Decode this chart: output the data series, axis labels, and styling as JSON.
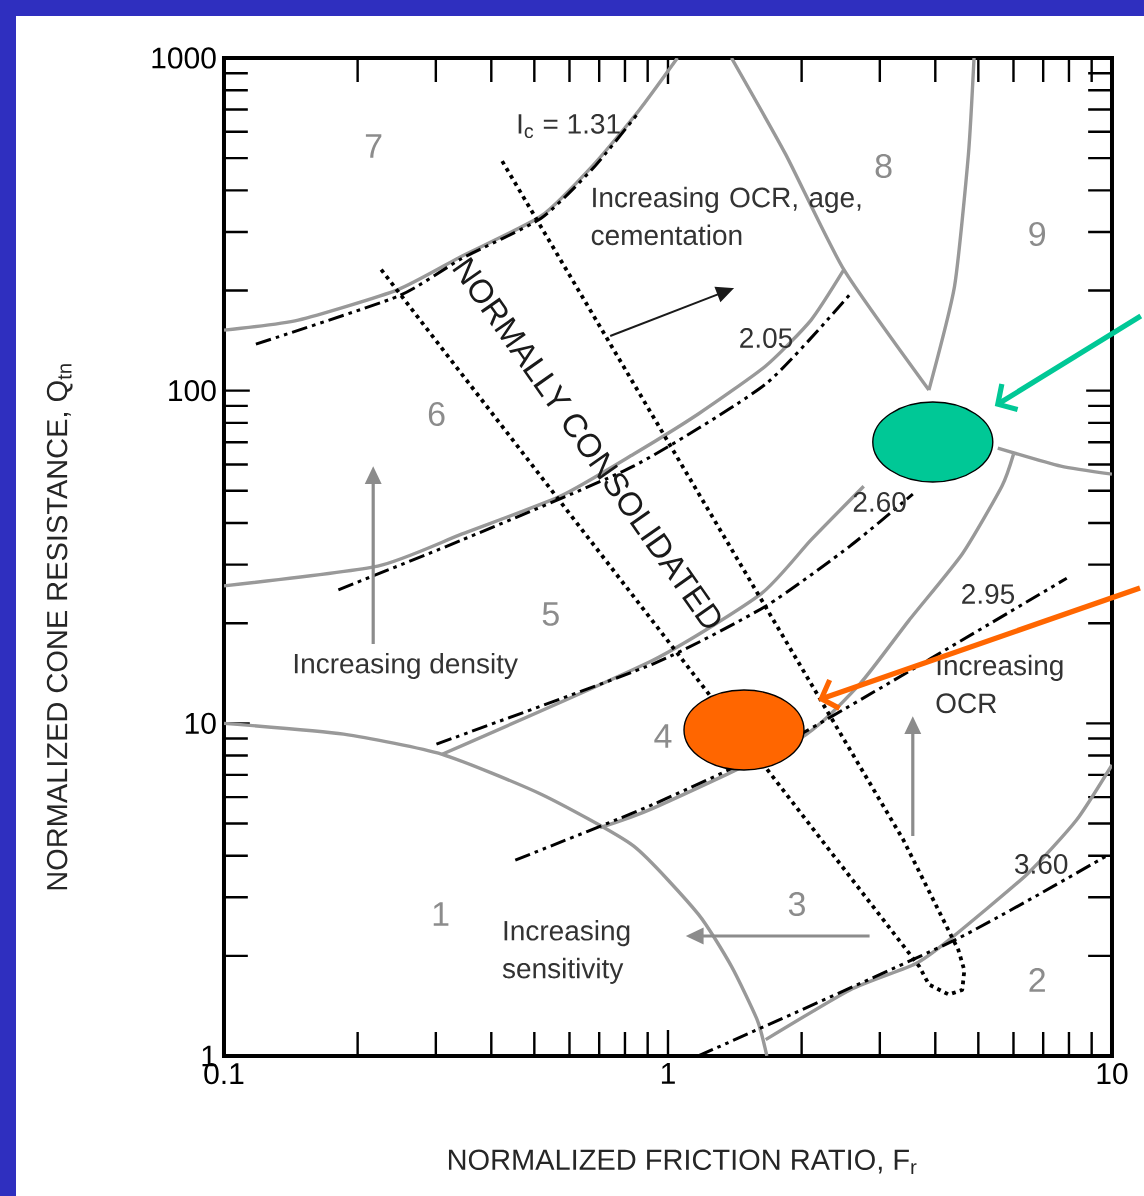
{
  "chart_data": {
    "type": "line",
    "xlabel": "NORMALIZED FRICTION RATIO, F$_{r}$",
    "ylabel": "NORMALIZED CONE RESISTANCE, Q$_{tn}$",
    "log": "xy",
    "xlim": [
      0.1,
      10
    ],
    "ylim": [
      1,
      1000
    ],
    "xticks": [
      0.1,
      1,
      10
    ],
    "yticks": [
      1,
      10,
      100,
      1000
    ],
    "series": [
      {
        "color": "#999999",
        "line_style": "solid",
        "x": [
          0.1,
          0.186,
          0.31,
          0.518,
          0.836,
          1.17,
          1.39,
          1.59,
          1.67
        ],
        "values": [
          10,
          9.28,
          8.07,
          6.12,
          4.28,
          2.67,
          1.86,
          1.28,
          1
        ]
      },
      {
        "color": "#999999",
        "line_style": "solid",
        "x": [
          1.66,
          2.57,
          3.6,
          4.29,
          6.44,
          8.32,
          10
        ],
        "values": [
          1.12,
          1.58,
          1.89,
          2.23,
          3.52,
          5.12,
          7.5
        ]
      },
      {
        "color": "#999999",
        "line_style": "solid",
        "x": [
          0.1,
          0.147,
          0.246,
          0.344,
          0.518,
          0.682,
          0.862,
          1.05
        ],
        "values": [
          152,
          163,
          201,
          254,
          335,
          480,
          698,
          1000
        ]
      },
      {
        "color": "#999999",
        "line_style": "solid",
        "x": [
          0.1,
          0.222,
          0.344,
          0.573,
          0.836,
          1.17,
          1.66,
          2.1,
          2.49
        ],
        "values": [
          25.9,
          29.7,
          37.1,
          48.2,
          64.4,
          85.1,
          118.6,
          163,
          231
        ]
      },
      {
        "color": "#999999",
        "line_style": "solid",
        "x": [
          1.39,
          1.84,
          2.49,
          3.87
        ],
        "values": [
          1000,
          514,
          231,
          100.4
        ]
      },
      {
        "color": "#999999",
        "line_style": "solid",
        "x": [
          3.87,
          4.42,
          4.75,
          4.89
        ],
        "values": [
          100.4,
          206,
          514,
          1000
        ]
      },
      {
        "color": "#999999",
        "line_style": "solid",
        "x": [
          5.53,
          7.67,
          10
        ],
        "values": [
          67.2,
          59.3,
          56.1
        ]
      },
      {
        "color": "#999999",
        "line_style": "solid",
        "x": [
          0.31,
          0.927,
          1.62,
          2.1,
          2.76
        ],
        "values": [
          8.07,
          15.5,
          24.5,
          35.6,
          51.6
        ]
      },
      {
        "color": "#999999",
        "line_style": "solid",
        "x": [
          0.703,
          0.927,
          1.99,
          2.7,
          3.49,
          4.6,
          5.65,
          6.0
        ],
        "values": [
          4.86,
          5.56,
          9.03,
          13.1,
          20.4,
          32.3,
          51.6,
          64.4
        ]
      },
      {
        "color": "#000000",
        "line_style": "dashdot",
        "x": [
          0.118,
          0.246,
          0.344,
          0.518,
          0.682,
          0.862
        ],
        "values": [
          138,
          192,
          250,
          330,
          470,
          690
        ]
      },
      {
        "color": "#000000",
        "line_style": "dashdot",
        "x": [
          0.181,
          0.344,
          0.836,
          1.66,
          2.57
        ],
        "values": [
          25.2,
          35.6,
          59.3,
          104.7,
          195
        ]
      },
      {
        "color": "#000000",
        "line_style": "dashdot",
        "x": [
          0.301,
          0.927,
          1.66,
          2.57,
          3.56
        ],
        "values": [
          8.66,
          15.1,
          22.5,
          34.1,
          48.9
        ]
      },
      {
        "color": "#000000",
        "line_style": "dashdot",
        "x": [
          0.453,
          0.927,
          1.99,
          7.91
        ],
        "values": [
          3.88,
          5.71,
          9.28,
          27.3
        ]
      },
      {
        "color": "#000000",
        "line_style": "dashdot",
        "x": [
          1.17,
          4.42,
          9.7
        ],
        "values": [
          1.0,
          2.23,
          3.99
        ]
      },
      {
        "color": "#000000",
        "line_style": "dotted",
        "x": [
          0.226,
          3.68,
          3.87,
          4.29,
          4.6,
          4.65,
          4.51,
          3.39,
          0.422
        ],
        "values": [
          231,
          1.86,
          1.64,
          1.53,
          1.58,
          1.81,
          2.08,
          4.46,
          493
        ]
      }
    ],
    "annotations": [
      "7",
      "6",
      "5",
      "4",
      "3",
      "2",
      "1",
      "8",
      "9",
      "I$_{c}$ = 1.31",
      "2.05",
      "2.60",
      "2.95",
      "3.60",
      "NORMALLY CONSOLIDATED",
      "Increasing OCR, age, cementation",
      "Increasing density",
      "Increasing sensitivity",
      "Increasing OCR"
    ]
  }
}
